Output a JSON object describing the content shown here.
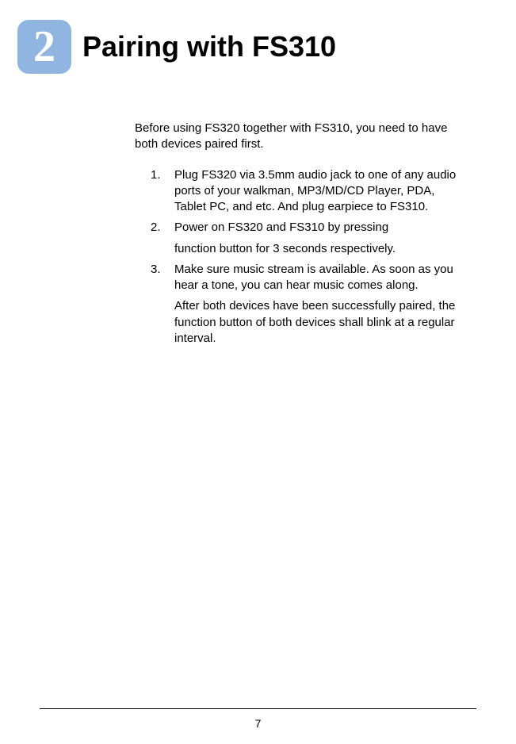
{
  "chapter": {
    "number": "2",
    "title": "Pairing with FS310",
    "badge_color": "#8fb5e0",
    "number_color": "#ffffff"
  },
  "intro": "Before using FS320 together with FS310, you need to have both devices paired first.",
  "steps": [
    {
      "num": "1.",
      "text": "Plug FS320 via 3.5mm audio jack to one of any audio ports of your walkman, MP3/MD/CD Player, PDA, Tablet PC, and etc.  And plug earpiece to FS310."
    },
    {
      "num": "2.",
      "text": "Power on FS320 and FS310 by pressing",
      "sub": "function button for 3 seconds respectively."
    },
    {
      "num": "3.",
      "text": "Make sure music stream is available.  As soon as you hear a tone, you can hear music comes along.",
      "sub": "After both devices have been successfully paired, the function button of both devices shall blink at a regular interval."
    }
  ],
  "page_number": "7",
  "colors": {
    "background": "#ffffff",
    "text": "#000000",
    "line": "#000000"
  },
  "typography": {
    "title_fontsize": 36,
    "title_weight": "bold",
    "body_fontsize": 15,
    "chapter_number_fontsize": 56
  }
}
